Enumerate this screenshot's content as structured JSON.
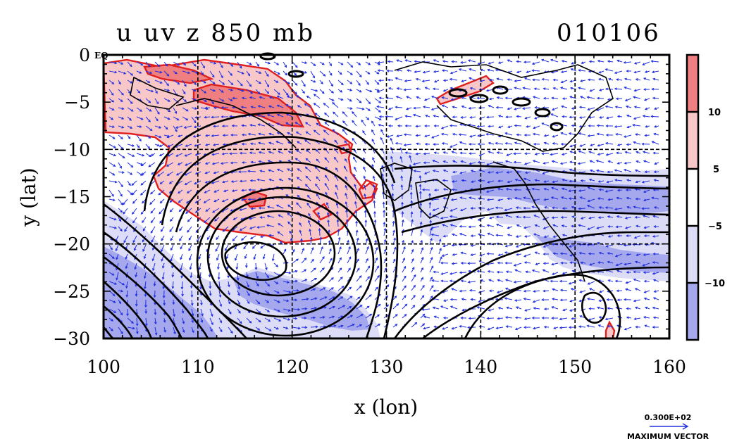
{
  "title_left": "u uv z 850 mb",
  "title_right": "010106",
  "eq_label": "EQ",
  "vector_scale_value": "0.300E+02",
  "vector_scale_caption": "MAXIMUM VECTOR",
  "colors": {
    "positive_dark": "#ef7f80",
    "positive_light": "#f8c8c9",
    "negative_light": "#dcdcf6",
    "negative_dark": "#a5a8ec",
    "contour_red": "#e0201e",
    "vector_blue": "#1f2ee0",
    "contour_black": "#000000"
  },
  "chart_data": {
    "type": "heatmap",
    "xlabel": "x (lon)",
    "ylabel": "y (lat)",
    "xlim": [
      100,
      160
    ],
    "ylim": [
      -30,
      0
    ],
    "xticks": [
      100,
      110,
      120,
      130,
      140,
      150,
      160
    ],
    "yticks": [
      0,
      -5,
      -10,
      -15,
      -20,
      -25,
      -30
    ],
    "ytick_labels": [
      "0",
      "−5",
      "−10",
      "−15",
      "−20",
      "−25",
      "−30"
    ],
    "grid": true,
    "colorbar": {
      "labels": [
        "10",
        "5",
        "−5",
        "−10"
      ],
      "label_values": [
        10,
        5,
        -5,
        -10
      ],
      "range": [
        -15,
        15
      ]
    },
    "fields": [
      "u",
      "uv",
      "z"
    ],
    "level": "850 mb",
    "date": "010106"
  }
}
